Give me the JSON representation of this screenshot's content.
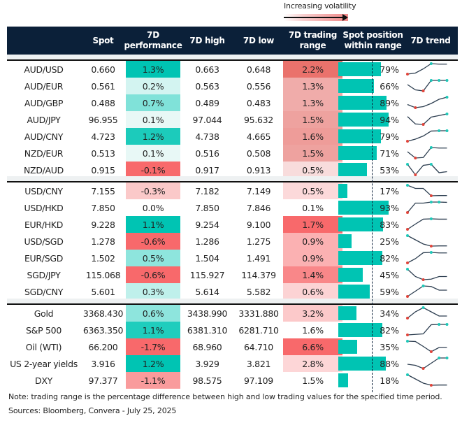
{
  "legend": {
    "label": "Increasing volatility"
  },
  "header": {
    "name": "",
    "spot": "Spot",
    "perf_line1": "7D",
    "perf_line2": "performance",
    "high": "7D high",
    "low": "7D low",
    "range_line1": "7D trading",
    "range_line2": "range",
    "pos_line1": "Spot position",
    "pos_line2": "within range",
    "trend": "7D trend"
  },
  "colors": {
    "header": "#0b2039",
    "bar": "#00c4b3",
    "max_marker": "#1ec8b8",
    "min_marker": "#e0443a",
    "trend_line": "#2d3e50"
  },
  "blocks": [
    {
      "rows": [
        {
          "name": "AUD/USD",
          "spot": "0.660",
          "perf": "1.3%",
          "perf_color": "#00c4b3",
          "high": "0.663",
          "low": "0.648",
          "range": "2.2%",
          "range_color": "#ea726c",
          "pos": 79,
          "pos_label": "79%",
          "trend": [
            0,
            0.1,
            0.5,
            1,
            0.95,
            0.95
          ]
        },
        {
          "name": "AUD/EUR",
          "spot": "0.561",
          "perf": "0.2%",
          "perf_color": "#d3f4f1",
          "high": "0.563",
          "low": "0.556",
          "range": "1.3%",
          "range_color": "#f0acaa",
          "pos": 66,
          "pos_label": "66%",
          "trend": [
            0.6,
            0.1,
            0,
            1,
            1,
            1
          ]
        },
        {
          "name": "AUD/GBP",
          "spot": "0.488",
          "perf": "0.7%",
          "perf_color": "#80e2d9",
          "high": "0.489",
          "low": "0.483",
          "range": "1.3%",
          "range_color": "#f0acaa",
          "pos": 89,
          "pos_label": "89%",
          "trend": [
            0.3,
            0,
            0.1,
            0.4,
            0.8,
            1
          ]
        },
        {
          "name": "AUD/JPY",
          "spot": "96.955",
          "perf": "0.1%",
          "perf_color": "#e8f8f6",
          "high": "97.044",
          "low": "95.632",
          "range": "1.5%",
          "range_color": "#eea29f",
          "pos": 94,
          "pos_label": "94%",
          "trend": [
            0.75,
            0.05,
            0,
            0.7,
            0.85,
            1
          ]
        },
        {
          "name": "AUD/CNY",
          "spot": "4.723",
          "perf": "1.2%",
          "perf_color": "#1ccbbb",
          "high": "4.738",
          "low": "4.665",
          "range": "1.6%",
          "range_color": "#ee9c99",
          "pos": 79,
          "pos_label": "79%",
          "trend": [
            0,
            0.2,
            0.5,
            0.97,
            1,
            1
          ]
        },
        {
          "name": "NZD/EUR",
          "spot": "0.513",
          "perf": "0.1%",
          "perf_color": "#e8f8f6",
          "high": "0.516",
          "low": "0.508",
          "range": "1.5%",
          "range_color": "#eea29f",
          "pos": 71,
          "pos_label": "71%",
          "trend": [
            0.6,
            0,
            0.05,
            1,
            0.95,
            0.95
          ]
        },
        {
          "name": "NZD/AUD",
          "spot": "0.915",
          "perf": "-0.1%",
          "perf_color": "#f8696b",
          "high": "0.917",
          "low": "0.913",
          "range": "0.5%",
          "range_color": "#f8dcdc",
          "pos": 53,
          "pos_label": "53%",
          "trend": [
            1,
            0,
            0.9,
            1,
            0.2,
            0.3
          ]
        }
      ]
    },
    {
      "rows": [
        {
          "name": "USD/CNY",
          "spot": "7.155",
          "perf": "-0.3%",
          "perf_color": "#fbc9c9",
          "high": "7.182",
          "low": "7.149",
          "range": "0.5%",
          "range_color": "#fcd9da",
          "pos": 17,
          "pos_label": "17%",
          "trend": [
            1,
            0.7,
            0.7,
            0,
            0.02,
            0.02
          ]
        },
        {
          "name": "USD/HKD",
          "spot": "7.850",
          "perf": "0.0%",
          "perf_color": "#ffffff",
          "high": "7.850",
          "low": "7.846",
          "range": "0.1%",
          "range_color": "#ffffff",
          "pos": 93,
          "pos_label": "93%",
          "trend": [
            0,
            0.9,
            0.9,
            1,
            1,
            0.97
          ]
        },
        {
          "name": "EUR/HKD",
          "spot": "9.228",
          "perf": "1.1%",
          "perf_color": "#00c4b3",
          "high": "9.254",
          "low": "9.100",
          "range": "1.7%",
          "range_color": "#f8696b",
          "pos": 83,
          "pos_label": "83%",
          "trend": [
            0,
            0.5,
            0.97,
            1,
            0.97,
            0.97
          ]
        },
        {
          "name": "USD/SGD",
          "spot": "1.278",
          "perf": "-0.6%",
          "perf_color": "#f8696b",
          "high": "1.286",
          "low": "1.275",
          "range": "0.9%",
          "range_color": "#fbb1b2",
          "pos": 25,
          "pos_label": "25%",
          "trend": [
            1,
            0.6,
            0.2,
            0,
            0.02,
            0.02
          ]
        },
        {
          "name": "EUR/SGD",
          "spot": "1.502",
          "perf": "0.5%",
          "perf_color": "#8ee5dd",
          "high": "1.504",
          "low": "1.491",
          "range": "0.9%",
          "range_color": "#fbb1b2",
          "pos": 82,
          "pos_label": "82%",
          "trend": [
            0,
            0.4,
            0.97,
            1,
            0.95,
            0.95
          ]
        },
        {
          "name": "SGD/JPY",
          "spot": "115.068",
          "perf": "-0.6%",
          "perf_color": "#f8696b",
          "high": "115.927",
          "low": "114.379",
          "range": "1.4%",
          "range_color": "#f98789",
          "pos": 45,
          "pos_label": "45%",
          "trend": [
            1,
            0.3,
            0,
            0.05,
            0.3,
            0.3
          ]
        },
        {
          "name": "SGD/CNY",
          "spot": "5.601",
          "perf": "0.3%",
          "perf_color": "#bff0eb",
          "high": "5.614",
          "low": "5.582",
          "range": "0.6%",
          "range_color": "#fcd3d4",
          "pos": 59,
          "pos_label": "59%",
          "trend": [
            0,
            0.5,
            1,
            0.95,
            0.6,
            0.6
          ]
        }
      ]
    },
    {
      "rows": [
        {
          "name": "Gold",
          "spot": "3368.430",
          "perf": "0.6%",
          "perf_color": "#8ee5dd",
          "high": "3438.990",
          "low": "3331.880",
          "range": "3.2%",
          "range_color": "#fcc9ca",
          "pos": 34,
          "pos_label": "34%",
          "trend": [
            0,
            0.6,
            1,
            0.6,
            0.2,
            0.2
          ]
        },
        {
          "name": "S&P 500",
          "spot": "6363.350",
          "perf": "1.1%",
          "perf_color": "#1fcdbd",
          "high": "6381.310",
          "low": "6281.710",
          "range": "1.6%",
          "range_color": "#ffffff",
          "pos": 82,
          "pos_label": "82%",
          "trend": [
            0,
            0.05,
            0.1,
            0.97,
            1,
            1
          ]
        },
        {
          "name": "Oil (WTI)",
          "spot": "66.200",
          "perf": "-1.7%",
          "perf_color": "#f8696b",
          "high": "68.960",
          "low": "64.710",
          "range": "6.6%",
          "range_color": "#f8696b",
          "pos": 35,
          "pos_label": "35%",
          "trend": [
            1,
            0.97,
            0.5,
            0,
            0.4,
            0.4
          ]
        },
        {
          "name": "US 2-year yields",
          "spot": "3.916",
          "perf": "1.2%",
          "perf_color": "#00c4b3",
          "high": "3.929",
          "low": "3.821",
          "range": "2.8%",
          "range_color": "#fdd6d7",
          "pos": 88,
          "pos_label": "88%",
          "trend": [
            0.4,
            0.3,
            0,
            0.5,
            1,
            1
          ]
        },
        {
          "name": "DXY",
          "spot": "97.377",
          "perf": "-1.1%",
          "perf_color": "#f99b9c",
          "high": "98.575",
          "low": "97.109",
          "range": "1.5%",
          "range_color": "#ffffff",
          "pos": 18,
          "pos_label": "18%",
          "trend": [
            1,
            0.6,
            0.2,
            0,
            0.02,
            0.02
          ]
        }
      ]
    }
  ],
  "notes": {
    "note": "Note: trading range is the percentage difference between high and low trading values for the specified time period.",
    "sources": "Sources: Bloomberg, Convera - July 25, 2025"
  }
}
